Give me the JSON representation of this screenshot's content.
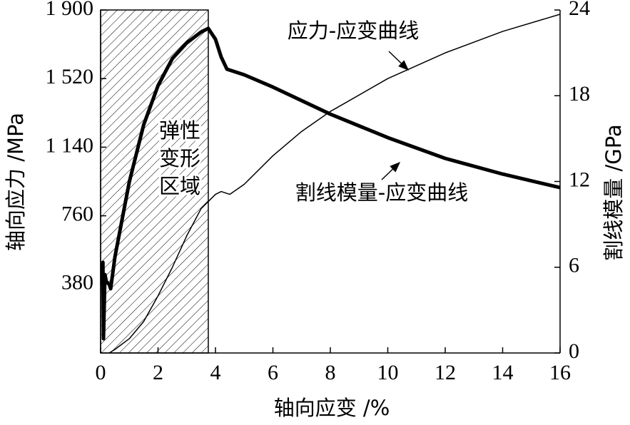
{
  "chart_data": {
    "type": "line",
    "xlabel": "轴向应变 /%",
    "ylabel": "轴向应力 /MPa",
    "y2label": "割线模量 /GPa",
    "xlim": [
      0,
      16
    ],
    "xticks": [
      0,
      2,
      4,
      6,
      8,
      10,
      12,
      14,
      16
    ],
    "ylim": [
      0,
      1900
    ],
    "yticks": [
      380,
      760,
      {
        "value": 1140,
        "label": "1 140"
      },
      {
        "value": 1520,
        "label": "1 520"
      },
      {
        "value": 1900,
        "label": "1 900"
      }
    ],
    "y2lim": [
      0,
      24
    ],
    "y2ticks": [
      0,
      6,
      12,
      18,
      24
    ],
    "highlight": {
      "x": [
        0,
        3.75
      ],
      "label": [
        "弹性",
        "变形",
        "区域"
      ]
    },
    "series": [
      {
        "name": "应力-应变曲线",
        "color": "#000000",
        "x": [
          0.05,
          0.08,
          0.1,
          0.15,
          0.2,
          0.3,
          0.35,
          0.5,
          1,
          1.5,
          2,
          2.5,
          3,
          3.5,
          3.75,
          4,
          4.2,
          4.4,
          5,
          6,
          8,
          10,
          12,
          14,
          16
        ],
        "values": [
          380,
          502,
          79,
          434,
          395,
          380,
          356,
          533,
          948,
          1264,
          1481,
          1631,
          1718,
          1778,
          1798,
          1738,
          1639,
          1572,
          1541,
          1473,
          1323,
          1193,
          1078,
          991,
          916
        ]
      },
      {
        "name": "割线模量-应变曲线",
        "color": "#000000",
        "axis": "y2",
        "x": [
          0.3,
          0.5,
          1,
          1.5,
          2,
          2.5,
          3,
          3.5,
          4,
          4.2,
          4.5,
          5,
          6,
          7,
          8,
          10,
          12,
          14,
          16
        ],
        "values": [
          0,
          0.25,
          1.0,
          2.2,
          4.0,
          6.0,
          8.2,
          10.1,
          11.1,
          11.3,
          11.1,
          11.8,
          13.8,
          15.5,
          16.9,
          19.2,
          21.0,
          22.5,
          23.7
        ]
      }
    ]
  }
}
